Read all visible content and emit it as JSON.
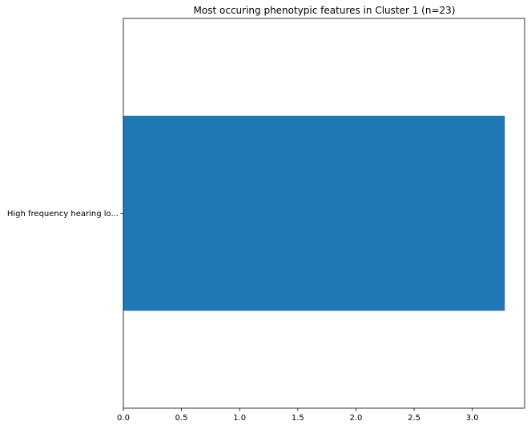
{
  "chart_data": {
    "type": "bar",
    "orientation": "horizontal",
    "title": "Most occuring phenotypic features in Cluster 1 (n=23)",
    "xlabel": "",
    "ylabel": "",
    "categories": [
      "High frequency hearing lo..."
    ],
    "values": [
      3.28
    ],
    "xlim": [
      0,
      3.45
    ],
    "xticks": [
      0.0,
      0.5,
      1.0,
      1.5,
      2.0,
      2.5,
      3.0
    ],
    "xtick_labels": [
      "0.0",
      "0.5",
      "1.0",
      "1.5",
      "2.0",
      "2.5",
      "3.0"
    ],
    "grid": false,
    "legend": "none",
    "bar_color": "#1f77b4",
    "background": "#ffffff"
  }
}
